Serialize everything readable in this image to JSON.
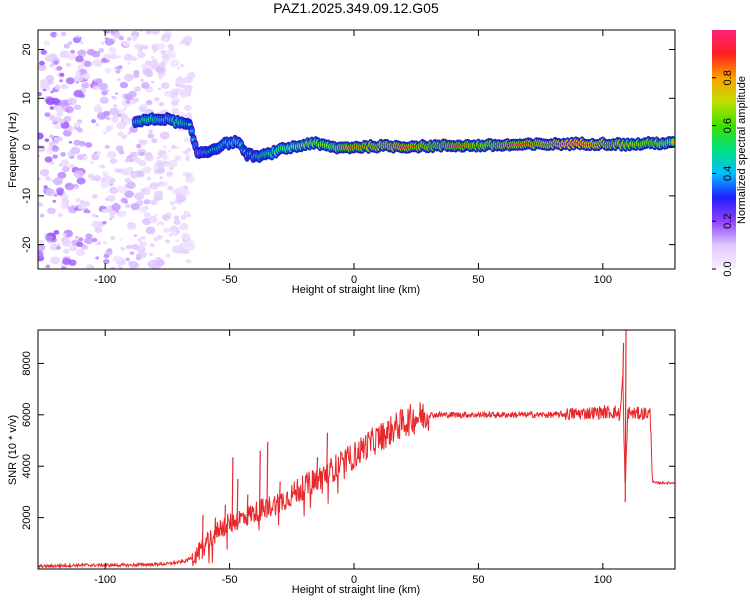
{
  "title": "PAZ1.2025.349.09.12.G05",
  "chart_data": [
    {
      "type": "heatmap",
      "name": "spectrogram",
      "xlabel": "Height of straight line (km)",
      "ylabel": "Frequency (Hz)",
      "xlim": [
        -127,
        129
      ],
      "ylim": [
        -25,
        24
      ],
      "xticks": [
        -100,
        -50,
        0,
        50,
        100
      ],
      "yticks": [
        -20,
        -10,
        0,
        10,
        20
      ],
      "colorbar": {
        "label": "Normalized spectral amplitude",
        "range": [
          0,
          1
        ],
        "ticks": [
          0.0,
          0.2,
          0.4,
          0.6,
          0.8
        ],
        "tick_labels": [
          "0.0",
          "0.2",
          "0.4",
          "0.6",
          "0.8"
        ],
        "colors": [
          "#f8f0ff",
          "#e0c8ff",
          "#9040ff",
          "#2020ff",
          "#00c0ff",
          "#00e080",
          "#40e000",
          "#c0e000",
          "#ffa000",
          "#ff2020",
          "#ff2080"
        ]
      },
      "noise_region": {
        "x": [
          -127,
          -65
        ],
        "y": [
          -25,
          24
        ],
        "amplitude": 0.18
      },
      "ridge": [
        {
          "x": -88,
          "y": 5.2,
          "a": 0.45
        },
        {
          "x": -82,
          "y": 5.6,
          "a": 0.5
        },
        {
          "x": -76,
          "y": 5.8,
          "a": 0.45
        },
        {
          "x": -70,
          "y": 5.0,
          "a": 0.5
        },
        {
          "x": -66,
          "y": 4.4,
          "a": 0.4
        },
        {
          "x": -63,
          "y": -1.2,
          "a": 0.3
        },
        {
          "x": -58,
          "y": -0.8,
          "a": 0.4
        },
        {
          "x": -52,
          "y": 0.6,
          "a": 0.45
        },
        {
          "x": -47,
          "y": 1.2,
          "a": 0.5
        },
        {
          "x": -43,
          "y": -1.5,
          "a": 0.4
        },
        {
          "x": -38,
          "y": -2.0,
          "a": 0.45
        },
        {
          "x": -33,
          "y": -1.2,
          "a": 0.5
        },
        {
          "x": -28,
          "y": -0.3,
          "a": 0.6
        },
        {
          "x": -22,
          "y": 0.2,
          "a": 0.65
        },
        {
          "x": -17,
          "y": 0.9,
          "a": 0.6
        },
        {
          "x": -12,
          "y": 0.3,
          "a": 0.7
        },
        {
          "x": -6,
          "y": -0.2,
          "a": 0.75
        },
        {
          "x": 0,
          "y": 0.0,
          "a": 0.8
        },
        {
          "x": 10,
          "y": 0.2,
          "a": 0.85
        },
        {
          "x": 20,
          "y": 0.1,
          "a": 0.85
        },
        {
          "x": 30,
          "y": 0.2,
          "a": 0.8
        },
        {
          "x": 40,
          "y": 0.3,
          "a": 0.8
        },
        {
          "x": 50,
          "y": 0.3,
          "a": 0.78
        },
        {
          "x": 60,
          "y": 0.4,
          "a": 0.82
        },
        {
          "x": 70,
          "y": 0.5,
          "a": 0.85
        },
        {
          "x": 80,
          "y": 0.6,
          "a": 0.9
        },
        {
          "x": 90,
          "y": 0.7,
          "a": 0.95
        },
        {
          "x": 100,
          "y": 0.7,
          "a": 0.9
        },
        {
          "x": 110,
          "y": 0.5,
          "a": 0.7
        },
        {
          "x": 120,
          "y": 0.8,
          "a": 0.75
        },
        {
          "x": 129,
          "y": 0.8,
          "a": 0.7
        }
      ]
    },
    {
      "type": "line",
      "name": "snr",
      "xlabel": "Height of straight line (km)",
      "ylabel": "SNR (10 * v/v)",
      "xlim": [
        -127,
        129
      ],
      "ylim": [
        0,
        9300
      ],
      "xticks": [
        -100,
        -50,
        0,
        50,
        100
      ],
      "yticks": [
        2000,
        4000,
        6000,
        8000
      ],
      "series": [
        {
          "name": "SNR",
          "color": "#e8282b",
          "x": [
            -127,
            -110,
            -90,
            -75,
            -68,
            -64,
            -60,
            -57,
            -54,
            -50,
            -45,
            -40,
            -35,
            -30,
            -25,
            -20,
            -15,
            -10,
            -5,
            0,
            5,
            10,
            15,
            20,
            25,
            30,
            40,
            50,
            60,
            70,
            80,
            90,
            100,
            105,
            107,
            108,
            109,
            110,
            112,
            115,
            118,
            119,
            120,
            121,
            125,
            129
          ],
          "y": [
            100,
            150,
            150,
            200,
            300,
            500,
            900,
            1300,
            1600,
            1800,
            2000,
            2200,
            2400,
            2600,
            2900,
            3200,
            3500,
            3800,
            4100,
            4400,
            4800,
            5100,
            5400,
            5700,
            5900,
            6000,
            6000,
            6000,
            6000,
            6000,
            6000,
            6050,
            6100,
            6100,
            6000,
            7500,
            3000,
            6100,
            6050,
            6050,
            6050,
            6050,
            3400,
            3350,
            3350,
            3350
          ]
        }
      ],
      "spikes": [
        {
          "x": -61,
          "y": 2100
        },
        {
          "x": -56,
          "y": 2000
        },
        {
          "x": -52,
          "y": 2500
        },
        {
          "x": -49,
          "y": 4350
        },
        {
          "x": -47,
          "y": 3500
        },
        {
          "x": -43,
          "y": 2900
        },
        {
          "x": -38,
          "y": 4600
        },
        {
          "x": -35,
          "y": 4950
        },
        {
          "x": -30,
          "y": 3400
        },
        {
          "x": -23,
          "y": 3500
        },
        {
          "x": -15,
          "y": 4350
        },
        {
          "x": -11,
          "y": 5300
        },
        {
          "x": 108,
          "y": 8800
        },
        {
          "x": 109,
          "y": 9300
        }
      ]
    }
  ]
}
